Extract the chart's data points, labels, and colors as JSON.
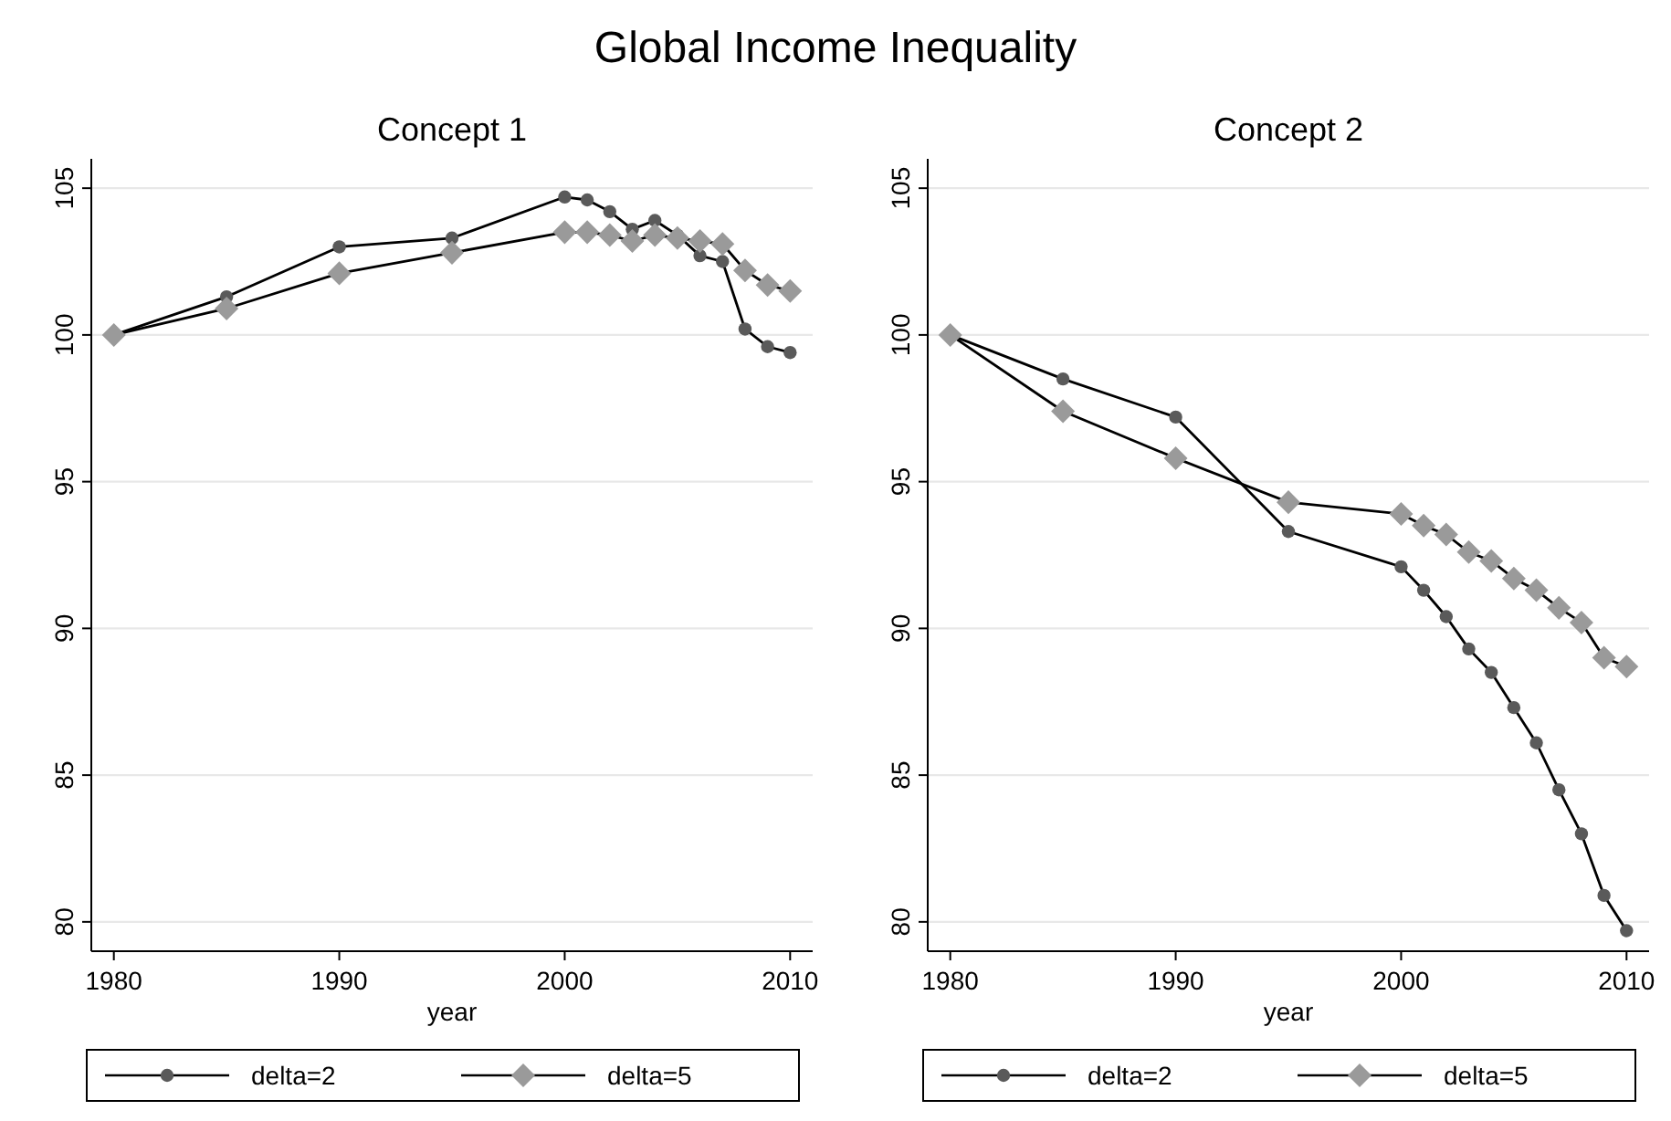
{
  "chart_data": [
    {
      "type": "line",
      "title": "Concept 1",
      "annotations": [
        "Global Income Inequality"
      ],
      "xlabel": "year",
      "x": [
        1980,
        1985,
        1990,
        1995,
        2000,
        2001,
        2002,
        2003,
        2004,
        2005,
        2006,
        2007,
        2008,
        2009,
        2010
      ],
      "series": [
        {
          "name": "delta=2",
          "color": "#5a5a5a",
          "marker": "circle",
          "values": [
            100,
            101.3,
            103.0,
            103.3,
            104.7,
            104.6,
            104.2,
            103.6,
            103.9,
            103.4,
            102.7,
            102.5,
            100.2,
            99.6,
            99.4
          ]
        },
        {
          "name": "delta=5",
          "color": "#9a9a9a",
          "marker": "diamond",
          "values": [
            100,
            100.9,
            102.1,
            102.8,
            103.5,
            103.5,
            103.4,
            103.2,
            103.4,
            103.3,
            103.2,
            103.1,
            102.2,
            101.7,
            101.5
          ]
        }
      ],
      "xlim": [
        1979,
        2011
      ],
      "xticks": [
        1980,
        1990,
        2000,
        2010
      ],
      "ylim": [
        79,
        106
      ],
      "yticks": [
        80,
        85,
        90,
        95,
        100,
        105
      ],
      "grid": "y",
      "legend": "bottom",
      "line_style": "solid"
    },
    {
      "type": "line",
      "title": "Concept 2",
      "xlabel": "year",
      "x": [
        1980,
        1985,
        1990,
        1995,
        2000,
        2001,
        2002,
        2003,
        2004,
        2005,
        2006,
        2007,
        2008,
        2009,
        2010
      ],
      "series": [
        {
          "name": "delta=2",
          "color": "#5a5a5a",
          "marker": "circle",
          "values": [
            100,
            98.5,
            97.2,
            93.3,
            92.1,
            91.3,
            90.4,
            89.3,
            88.5,
            87.3,
            86.1,
            84.5,
            83.0,
            80.9,
            79.7
          ]
        },
        {
          "name": "delta=5",
          "color": "#9a9a9a",
          "marker": "diamond",
          "values": [
            100,
            97.4,
            95.8,
            94.3,
            93.9,
            93.5,
            93.2,
            92.6,
            92.3,
            91.7,
            91.3,
            90.7,
            90.2,
            89.0,
            88.7
          ]
        }
      ],
      "xlim": [
        1979,
        2011
      ],
      "xticks": [
        1980,
        1990,
        2000,
        2010
      ],
      "ylim": [
        79,
        106
      ],
      "yticks": [
        80,
        85,
        90,
        95,
        100,
        105
      ],
      "grid": "y",
      "legend": "bottom",
      "line_style": "solid"
    }
  ]
}
